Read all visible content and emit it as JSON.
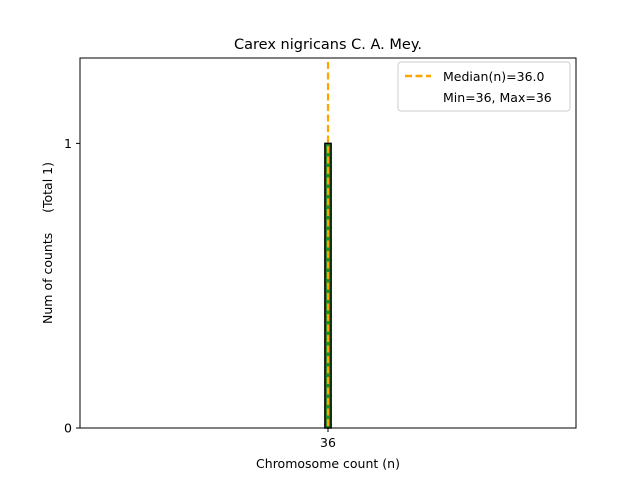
{
  "chart_data": {
    "type": "bar",
    "title": "Carex nigricans C. A. Mey.",
    "xlabel": "Chromosome count (n)",
    "ylabel": "Num of counts     (Total 1)",
    "categories": [
      "36"
    ],
    "values": [
      1
    ],
    "xlim": [
      26,
      46
    ],
    "ylim": [
      0,
      1.3
    ],
    "x_ticks": [
      36
    ],
    "y_ticks": [
      0,
      1
    ],
    "x_tick_labels": [
      "36"
    ],
    "y_tick_labels": [
      "0",
      "1"
    ],
    "median": 36.0,
    "min": 36,
    "max": 36,
    "legend": {
      "position": "top-right",
      "entries": [
        "Median(n)=36.0",
        "Min=36, Max=36"
      ]
    },
    "colors": {
      "bar_fill": "#228b22",
      "bar_edge": "#000000",
      "bar_hatch": "#228b22",
      "median_line": "#ffa500"
    }
  }
}
